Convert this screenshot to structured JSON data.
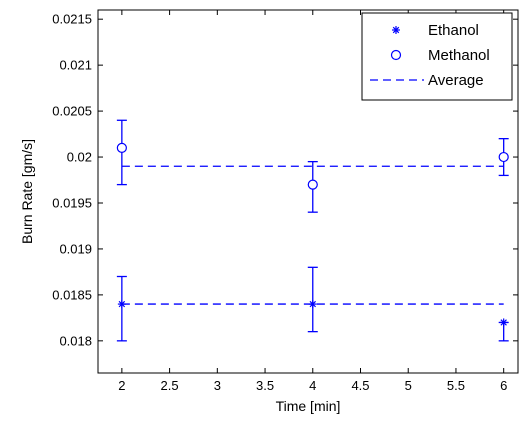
{
  "chart_data": {
    "type": "scatter",
    "xlabel": "Time [min]",
    "ylabel": "Burn Rate [gm/s]",
    "xlim": [
      1.75,
      6.15
    ],
    "ylim": [
      0.01765,
      0.0216
    ],
    "x_ticks": [
      "2",
      "2.5",
      "3",
      "3.5",
      "4",
      "4.5",
      "5",
      "5.5",
      "6"
    ],
    "y_ticks": [
      "0.018",
      "0.0185",
      "0.019",
      "0.0195",
      "0.02",
      "0.0205",
      "0.021",
      "0.0215"
    ],
    "grid": false,
    "legend_position": "top-right",
    "series": [
      {
        "name": "Ethanol",
        "marker": "asterisk",
        "color": "#0000ff",
        "x": [
          2,
          4,
          6
        ],
        "y": [
          0.0184,
          0.0184,
          0.0182
        ],
        "err_low": [
          0.0004,
          0.0003,
          0.0002
        ],
        "err_high": [
          0.0003,
          0.0004,
          0.0
        ]
      },
      {
        "name": "Methanol",
        "marker": "circle",
        "color": "#0000ff",
        "x": [
          2,
          4,
          6
        ],
        "y": [
          0.0201,
          0.0197,
          0.02
        ],
        "err_low": [
          0.0004,
          0.0003,
          0.0002
        ],
        "err_high": [
          0.0003,
          0.00025,
          0.0002
        ]
      },
      {
        "name": "Average",
        "marker": "dashed-line",
        "color": "#0000ff",
        "lines": [
          {
            "x": [
              2,
              6
            ],
            "y": [
              0.0199,
              0.0199
            ]
          },
          {
            "x": [
              2,
              6
            ],
            "y": [
              0.0184,
              0.0184
            ]
          }
        ]
      }
    ]
  }
}
